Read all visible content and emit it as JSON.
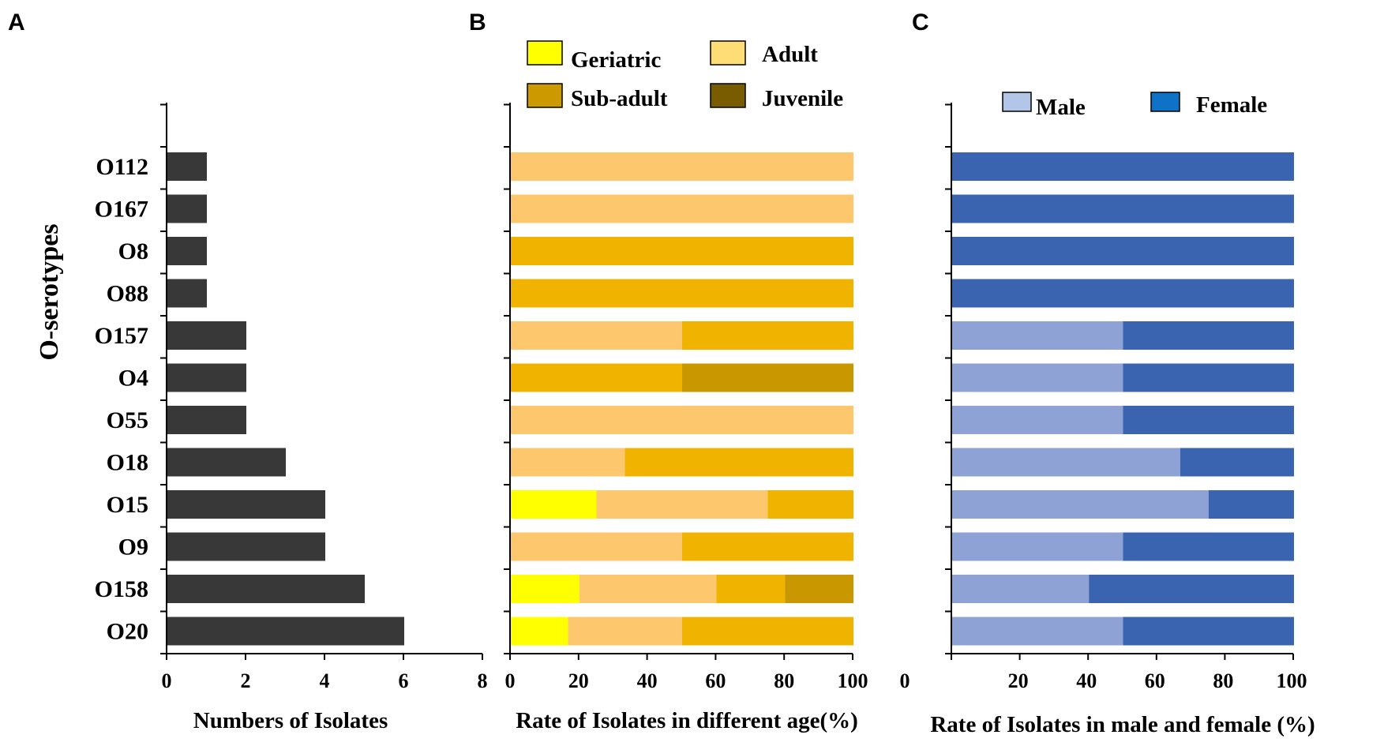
{
  "chart_data": [
    {
      "panel": "A",
      "type": "bar",
      "orientation": "horizontal",
      "title": "",
      "ylabel": "O-serotypes",
      "xlabel": "Numbers of Isolates",
      "categories": [
        "O112",
        "O167",
        "O8",
        "O88",
        "O157",
        "O4",
        "O55",
        "O18",
        "O15",
        "O9",
        "O158",
        "O20"
      ],
      "values": [
        1,
        1,
        1,
        1,
        2,
        2,
        2,
        3,
        4,
        4,
        5,
        6
      ],
      "xlim": [
        0,
        8
      ],
      "xticks": [
        "0",
        "2",
        "4",
        "6",
        "8"
      ],
      "colors": {
        "bar": "#383838"
      }
    },
    {
      "panel": "B",
      "type": "bar",
      "orientation": "horizontal",
      "stacked": true,
      "xlabel": "Rate of Isolates in different age(%)",
      "categories": [
        "O112",
        "O167",
        "O8",
        "O88",
        "O157",
        "O4",
        "O55",
        "O18",
        "O15",
        "O9",
        "O158",
        "O20"
      ],
      "xlim": [
        0,
        100
      ],
      "xticks": [
        "0",
        "20",
        "40",
        "60",
        "80",
        "100"
      ],
      "series": [
        {
          "name": "Geriatric",
          "color": "#ffff00",
          "values": [
            0,
            0,
            0,
            0,
            0,
            0,
            0,
            0,
            25,
            0,
            20,
            16.7
          ]
        },
        {
          "name": "Adult",
          "color": "#fcc76d",
          "values": [
            100,
            100,
            0,
            0,
            50,
            0,
            100,
            33.3,
            50,
            50,
            40,
            33.3
          ]
        },
        {
          "name": "Sub-adult",
          "color": "#f0b400",
          "values": [
            0,
            0,
            100,
            100,
            50,
            50,
            0,
            66.7,
            25,
            50,
            20,
            50
          ]
        },
        {
          "name": "Juvenile",
          "color": "#c99700",
          "values": [
            0,
            0,
            0,
            0,
            0,
            50,
            0,
            0,
            0,
            0,
            20,
            0
          ]
        }
      ],
      "legend": [
        {
          "label": "Geriatric",
          "color": "#ffff00"
        },
        {
          "label": "Adult",
          "color": "#ffdd76"
        },
        {
          "label": "Sub-adult",
          "color": "#cc9a00"
        },
        {
          "label": "Juvenile",
          "color": "#7a5c00"
        }
      ],
      "legend_position": "top"
    },
    {
      "panel": "C",
      "type": "bar",
      "orientation": "horizontal",
      "stacked": true,
      "xlabel": "Rate of Isolates in male and female (%)",
      "categories": [
        "O112",
        "O167",
        "O8",
        "O88",
        "O157",
        "O4",
        "O55",
        "O18",
        "O15",
        "O9",
        "O158",
        "O20"
      ],
      "xlim": [
        0,
        100
      ],
      "xticks": [
        "0",
        "20",
        "40",
        "60",
        "80",
        "100"
      ],
      "series": [
        {
          "name": "Male",
          "color": "#8fa2d6",
          "values": [
            0,
            0,
            0,
            0,
            50,
            50,
            50,
            66.7,
            75,
            50,
            40,
            50
          ]
        },
        {
          "name": "Female",
          "color": "#3a64b0",
          "values": [
            100,
            100,
            100,
            100,
            50,
            50,
            50,
            33.3,
            25,
            50,
            60,
            50
          ]
        }
      ],
      "legend": [
        {
          "label": "Male",
          "color": "#b4c6e7"
        },
        {
          "label": "Female",
          "color": "#0e73c6"
        }
      ],
      "legend_position": "top"
    }
  ]
}
